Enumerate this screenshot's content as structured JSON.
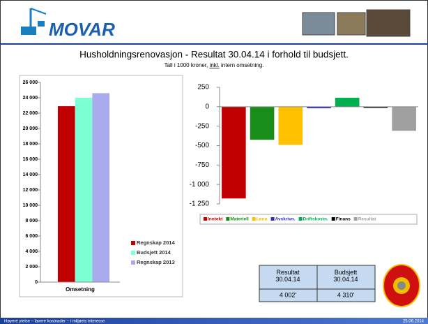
{
  "header": {
    "logo": "MOVAR",
    "title": "Husholdningsrenovasjon - Resultat 30.04.14 i forhold til budsjett.",
    "subtitle": [
      "Tall i 1000 kroner, ",
      "inkl.",
      " intern omsetning."
    ]
  },
  "chart_data": [
    {
      "type": "bar",
      "categories": [
        "Omsetning"
      ],
      "series": [
        {
          "name": "Regnskap 2014",
          "color": "#c00000",
          "values": [
            22900
          ]
        },
        {
          "name": "Budsjett 2014",
          "color": "#7fffd4",
          "values": [
            24000
          ]
        },
        {
          "name": "Regnskap 2013",
          "color": "#aaaaee",
          "values": [
            24600
          ]
        }
      ],
      "ylim": [
        0,
        26000
      ],
      "yticks": [
        0,
        {
          "value": 2000,
          "label": "2 000"
        },
        {
          "value": 4000,
          "label": "4 000"
        },
        {
          "value": 6000,
          "label": "6 000"
        },
        {
          "value": 8000,
          "label": "8 000"
        },
        {
          "value": 10000,
          "label": "10 000"
        },
        {
          "value": 12000,
          "label": "12 000"
        },
        {
          "value": 14000,
          "label": "14 000"
        },
        {
          "value": 16000,
          "label": "16 000"
        },
        {
          "value": 18000,
          "label": "18 000"
        },
        {
          "value": 20000,
          "label": "20 000"
        },
        {
          "value": 22000,
          "label": "22 000"
        },
        {
          "value": 24000,
          "label": "24 000"
        },
        {
          "value": 26000,
          "label": "26 000"
        }
      ],
      "grid": false,
      "legend": "right"
    },
    {
      "type": "bar",
      "categories": [
        null
      ],
      "series": [
        {
          "name": "Inntekt",
          "color": "#c00000",
          "values": [
            -1180
          ]
        },
        {
          "name": "Materiell",
          "color": "#1a8c1a",
          "values": [
            -425
          ]
        },
        {
          "name": "Lønn",
          "color": "#ffc000",
          "values": [
            -490
          ]
        },
        {
          "name": "Avskrivn.",
          "color": "#3030c0",
          "values": [
            -20
          ]
        },
        {
          "name": "Driftskostn.",
          "color": "#00b050",
          "values": [
            115
          ]
        },
        {
          "name": "Finans",
          "color": "#000000",
          "values": [
            -15
          ]
        },
        {
          "name": "Resultat",
          "color": "#a0a0a0",
          "values": [
            -310
          ]
        }
      ],
      "ylim": [
        -1250,
        250
      ],
      "yticks": [
        250,
        0,
        -250,
        -500,
        -750,
        {
          "value": -1000,
          "label": "-1 000"
        },
        {
          "value": -1250,
          "label": "-1 250"
        }
      ],
      "grid": false,
      "legend": "bottom"
    }
  ],
  "table": {
    "header": [
      "Resultat 30.04.14",
      "Budsjett 30.04.14"
    ],
    "row": [
      "4 002'",
      "4 310'"
    ]
  },
  "footer": {
    "slogan": "Høyere ytelse – lavere kostnader – i miljøets interesse",
    "date": "25.06.2014"
  }
}
